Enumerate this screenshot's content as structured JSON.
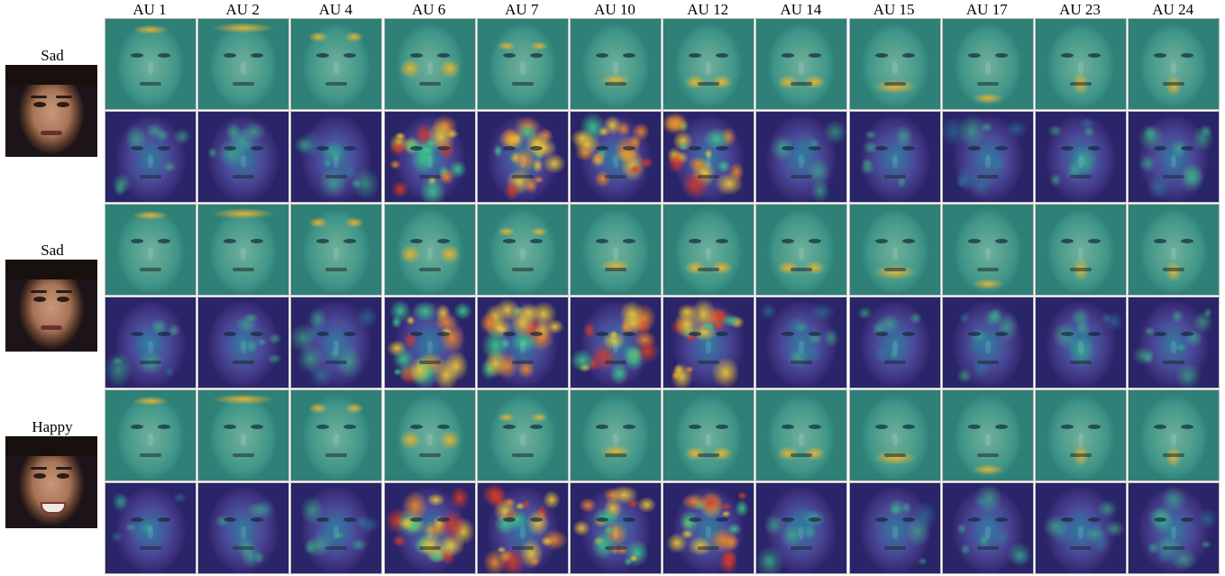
{
  "columns": [
    "AU 1",
    "AU 2",
    "AU 4",
    "AU 6",
    "AU 7",
    "AU 10",
    "AU 12",
    "AU 14",
    "AU 15",
    "AU 17",
    "AU 23",
    "AU 24"
  ],
  "samples": [
    {
      "label": "Sad",
      "expression": "sad"
    },
    {
      "label": "Sad",
      "expression": "sad"
    },
    {
      "label": "Happy",
      "expression": "happy"
    }
  ],
  "colors": {
    "teal_overlay": "#3e9488",
    "viridis_dark": "#3b2f7a",
    "viridis_mid": "#2f7fa0",
    "viridis_green": "#3cc38a",
    "hot_yellow": "#e8c43a",
    "hot_orange": "#e8862e",
    "hot_red": "#d23a2a",
    "border": "#bfbfbf"
  }
}
